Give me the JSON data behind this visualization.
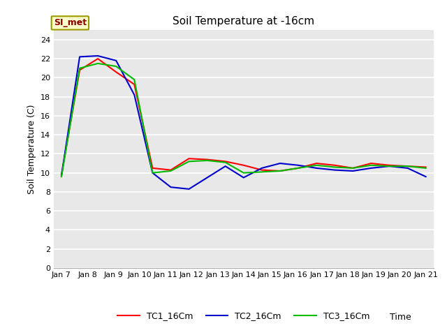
{
  "title": "Soil Temperature at -16cm",
  "xlabel": "Time",
  "ylabel": "Soil Temperature (C)",
  "annotation": "SI_met",
  "ylim": [
    0,
    25
  ],
  "yticks": [
    0,
    2,
    4,
    6,
    8,
    10,
    12,
    14,
    16,
    18,
    20,
    22,
    24
  ],
  "x_labels": [
    "Jan 7",
    "Jan 8",
    "Jan 9",
    "Jan 10",
    "Jan 11",
    "Jan 12",
    "Jan 13",
    "Jan 14",
    "Jan 15",
    "Jan 16",
    "Jan 17",
    "Jan 18",
    "Jan 19",
    "Jan 20",
    "Jan 21"
  ],
  "TC1_color": "#ff0000",
  "TC2_color": "#0000cc",
  "TC3_color": "#00bb00",
  "TC1_label": "TC1_16Cm",
  "TC2_label": "TC2_16Cm",
  "TC3_label": "TC3_16Cm",
  "background_color": "#e8e8e8",
  "fig_background": "#ffffff",
  "TC1_data": [
    9.8,
    20.8,
    22.0,
    20.6,
    19.3,
    10.5,
    10.3,
    11.5,
    11.4,
    11.2,
    10.8,
    10.3,
    10.2,
    10.5,
    11.0,
    10.8,
    10.5,
    11.0,
    10.8,
    10.7,
    10.6
  ],
  "TC2_data": [
    9.7,
    22.2,
    22.3,
    21.8,
    18.2,
    10.0,
    8.5,
    8.3,
    9.5,
    10.7,
    9.5,
    10.5,
    11.0,
    10.8,
    10.5,
    10.3,
    10.2,
    10.5,
    10.7,
    10.5,
    9.6
  ],
  "TC3_data": [
    9.6,
    21.0,
    21.5,
    21.2,
    19.8,
    10.0,
    10.2,
    11.2,
    11.3,
    11.1,
    10.0,
    10.1,
    10.2,
    10.5,
    10.8,
    10.6,
    10.5,
    10.8,
    10.7,
    10.7,
    10.5
  ],
  "linewidth": 1.5,
  "tick_fontsize": 8,
  "label_fontsize": 9,
  "title_fontsize": 11
}
